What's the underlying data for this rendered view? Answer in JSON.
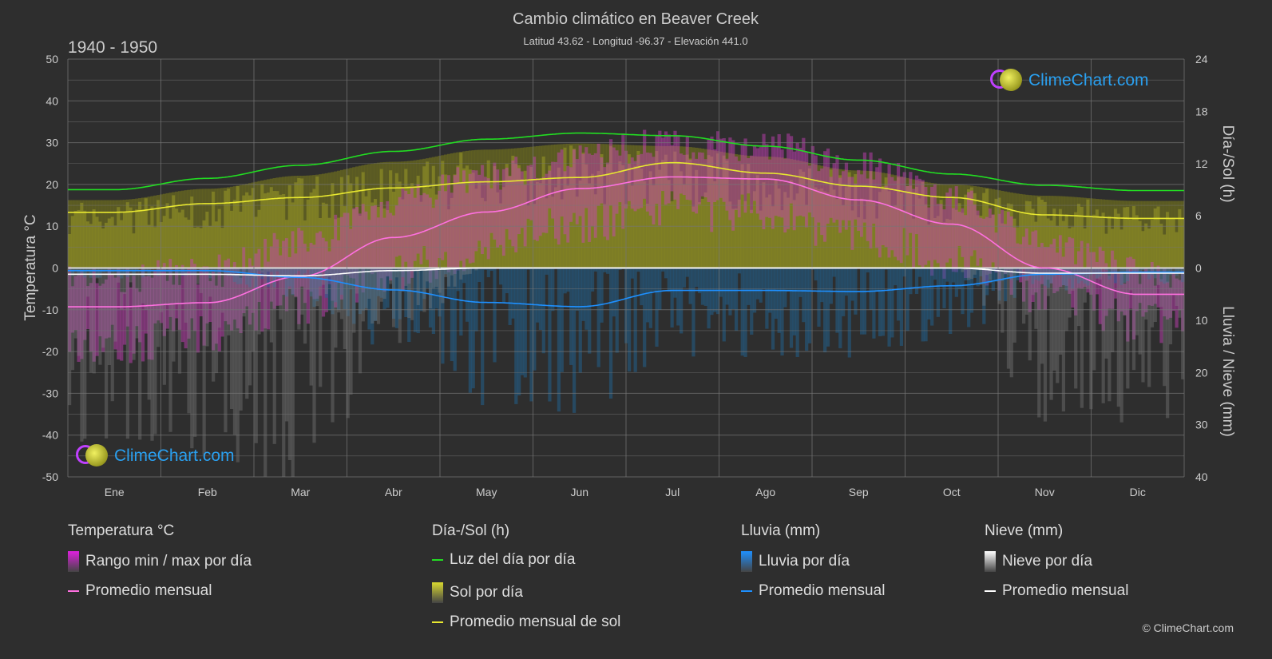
{
  "header": {
    "title": "Cambio climático en Beaver Creek",
    "subtitle": "Latitud 43.62 - Longitud -96.37 - Elevación 441.0",
    "period": "1940 - 1950"
  },
  "branding": {
    "logo_text": "ClimeChart.com",
    "copyright": "© ClimeChart.com"
  },
  "chart_data": {
    "type": "line",
    "title": "Cambio climático en Beaver Creek",
    "categories": [
      "Ene",
      "Feb",
      "Mar",
      "Abr",
      "May",
      "Jun",
      "Jul",
      "Ago",
      "Sep",
      "Oct",
      "Nov",
      "Dic"
    ],
    "y_left": {
      "label": "Temperatura °C",
      "range": [
        -50,
        50
      ],
      "ticks": [
        50,
        40,
        30,
        20,
        10,
        0,
        -10,
        -20,
        -30,
        -40,
        -50
      ]
    },
    "y_right_top": {
      "label": "Día-/Sol (h)",
      "range": [
        0,
        24
      ],
      "ticks": [
        24,
        18,
        12,
        6,
        0
      ]
    },
    "y_right_bottom": {
      "label": "Lluvia / Nieve (mm)",
      "range": [
        0,
        40
      ],
      "ticks": [
        10,
        20,
        30,
        40
      ]
    },
    "grid": true,
    "series": [
      {
        "name": "Luz del día por día",
        "axis": "hours",
        "color": "#22dd22",
        "values": [
          9.0,
          10.3,
          11.8,
          13.4,
          14.8,
          15.5,
          15.2,
          14.0,
          12.4,
          10.8,
          9.5,
          8.9
        ]
      },
      {
        "name": "Promedio mensual de sol",
        "axis": "hours",
        "color": "#e8e830",
        "values": [
          6.4,
          7.4,
          8.1,
          9.2,
          9.9,
          10.4,
          12.1,
          10.9,
          9.4,
          8.1,
          6.1,
          5.7
        ]
      },
      {
        "name": "Promedio mensual",
        "group": "Temperatura °C",
        "axis": "temp",
        "color": "#ff70e0",
        "values": [
          -9.3,
          -8.3,
          -2.0,
          7.3,
          13.4,
          19.0,
          21.8,
          21.3,
          16.3,
          10.5,
          0.0,
          -6.3
        ]
      },
      {
        "name": "Promedio mensual",
        "group": "Lluvia (mm)",
        "axis": "precip",
        "color": "#1e90ff",
        "values": [
          0.5,
          0.5,
          1.8,
          4.2,
          6.6,
          7.4,
          4.3,
          4.3,
          4.5,
          3.4,
          1.2,
          0.8
        ]
      },
      {
        "name": "Promedio mensual",
        "group": "Nieve (mm)",
        "axis": "precip",
        "color": "#ffffff",
        "values": [
          1.2,
          1.2,
          1.5,
          0.5,
          0,
          0,
          0,
          0,
          0,
          0,
          1.0,
          1.0
        ]
      }
    ],
    "daily_range_approx": {
      "max": [
        -3,
        -1,
        6,
        15,
        22,
        27,
        30,
        29,
        24,
        17,
        6,
        -1
      ],
      "min": [
        -18,
        -16,
        -9,
        -1,
        5,
        11,
        14,
        13,
        8,
        2,
        -7,
        -13
      ]
    }
  },
  "legend": {
    "groups": [
      {
        "title": "Temperatura °C",
        "items": [
          {
            "label": "Rango min / max por día",
            "kind": "swatch",
            "color": "#e020e0"
          },
          {
            "label": "Promedio mensual",
            "kind": "line",
            "color": "#ff70e0"
          }
        ]
      },
      {
        "title": "Día-/Sol (h)",
        "items": [
          {
            "label": "Luz del día por día",
            "kind": "line",
            "color": "#22dd22"
          },
          {
            "label": "Sol por día",
            "kind": "swatch",
            "color": "#d8d830"
          },
          {
            "label": "Promedio mensual de sol",
            "kind": "line",
            "color": "#e8e830"
          }
        ]
      },
      {
        "title": "Lluvia (mm)",
        "items": [
          {
            "label": "Lluvia por día",
            "kind": "swatch",
            "color": "#1e90ff"
          },
          {
            "label": "Promedio mensual",
            "kind": "line",
            "color": "#1e90ff"
          }
        ]
      },
      {
        "title": "Nieve (mm)",
        "items": [
          {
            "label": "Nieve por día",
            "kind": "swatch",
            "color": "#ffffff"
          },
          {
            "label": "Promedio mensual",
            "kind": "line",
            "color": "#ffffff"
          }
        ]
      }
    ]
  }
}
